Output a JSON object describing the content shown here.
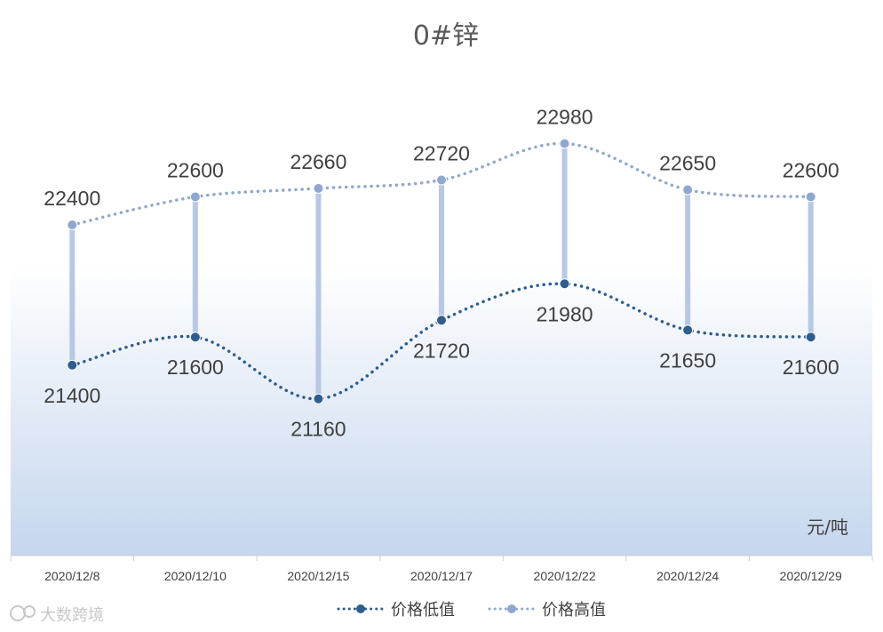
{
  "chart_data": {
    "type": "line",
    "title": "0#锌",
    "unit_label": "元/吨",
    "categories": [
      "2020/12/8",
      "2020/12/10",
      "2020/12/15",
      "2020/12/17",
      "2020/12/22",
      "2020/12/24",
      "2020/12/29"
    ],
    "series": [
      {
        "name": "价格低值",
        "values": [
          21400,
          21600,
          21160,
          21720,
          21980,
          21650,
          21600
        ],
        "color": "#2f5d8f"
      },
      {
        "name": "价格高值",
        "values": [
          22400,
          22600,
          22660,
          22720,
          22980,
          22650,
          22600
        ],
        "color": "#8fa8d0"
      }
    ],
    "legend_position": "bottom",
    "grid": false,
    "background_gradient": [
      "#ffffff",
      "#c5d6ee"
    ],
    "hi_lo_line_color": "#b7c8e6",
    "watermark": "大数跨境"
  }
}
